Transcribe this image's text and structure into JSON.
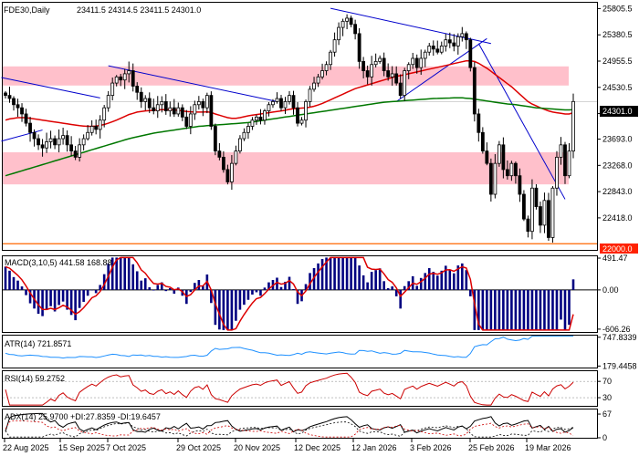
{
  "title": "FDE30,Daily",
  "ohlc_text": "23411.5 24314.5 23411.5 24301.0",
  "last_price": "24301.0",
  "support_label": "22000.0",
  "colors": {
    "candle": "#000000",
    "zone": "#ffc0cb",
    "ma_fast": "#dd0000",
    "ma_slow": "#007700",
    "trendline": "#0000cc",
    "macd_hist": "#000080",
    "macd_signal": "#dd0000",
    "atr": "#1e90ff",
    "rsi": "#cc0000",
    "adx": "#000000",
    "support_line": "#ff6600"
  },
  "chart_data": [
    {
      "type": "candlestick",
      "title": "FDE30,Daily",
      "ylim": [
        21900,
        25900
      ],
      "y_ticks": [
        "25805.5",
        "25380.5",
        "24955.5",
        "24530.5",
        "24105.5",
        "23693.0",
        "23268.0",
        "22843.0",
        "22418.0"
      ],
      "x_ticks": [
        "22 Aug 2025",
        "15 Sep 2025",
        "7 Oct 2025",
        "29 Oct 2025",
        "20 Nov 2025",
        "12 Dec 2025",
        "12 Jan 2026",
        "3 Feb 2026",
        "25 Feb 2026",
        "19 Mar 2026"
      ],
      "zones": [
        [
          24560,
          24870
        ],
        [
          22960,
          23480
        ]
      ],
      "series": [
        {
          "values": [
            24400,
            24350,
            24250,
            24200,
            24100,
            23950,
            23800,
            23700,
            23600,
            23550,
            23650,
            23700,
            23600,
            23700,
            23750,
            23600,
            23500,
            23400,
            23600,
            23700,
            23800,
            23900,
            23850,
            24000,
            24200,
            24400,
            24600,
            24700,
            24650,
            24750,
            24800,
            24550,
            24450,
            24300,
            24350,
            24200,
            24150,
            24250,
            24300,
            24150,
            24200,
            24100,
            24200,
            24050,
            23900,
            24100,
            24250,
            24300,
            24200,
            24400,
            23900,
            23500,
            23400,
            23200,
            23000,
            23300,
            23500,
            23700,
            23800,
            23900,
            24000,
            24050,
            24000,
            24150,
            24250,
            24300,
            24350,
            24200,
            24300,
            24400,
            24200,
            23950,
            24000,
            24300,
            24500,
            24600,
            24700,
            24800,
            24900,
            25100,
            25300,
            25500,
            25600,
            25650,
            25550,
            25400,
            24950,
            24800,
            24700,
            24900,
            24950,
            25000,
            24800,
            24700,
            24750,
            24600,
            24400,
            24800,
            24900,
            25000,
            24850,
            25000,
            25100,
            25200,
            25150,
            25100,
            25200,
            25300,
            25250,
            25200,
            25350,
            25400,
            25300,
            24850,
            24100,
            23800,
            23500,
            23300,
            22800,
            23300,
            23600,
            23200,
            23100,
            23300,
            23100,
            22800,
            22400,
            22200,
            22900,
            22600,
            22300,
            22700,
            22100,
            22900,
            23400,
            23600,
            23100,
            23500,
            24301
          ]
        },
        {
          "values": [
            24000,
            24020,
            24030,
            24040,
            24040,
            24040,
            24030,
            24020,
            24010,
            24000,
            23990,
            23980,
            23970,
            23960,
            23950,
            23940,
            23930,
            23920,
            23910,
            23905,
            23900,
            23900,
            23905,
            23915,
            23930,
            23950,
            23975,
            24000,
            24030,
            24060,
            24090,
            24110,
            24130,
            24140,
            24150,
            24155,
            24160,
            24165,
            24170,
            24170,
            24170,
            24165,
            24160,
            24150,
            24140,
            24135,
            24130,
            24130,
            24130,
            24135,
            24125,
            24100,
            24080,
            24060,
            24040,
            24030,
            24030,
            24040,
            24055,
            24070,
            24080,
            24090,
            24100,
            24110,
            24120,
            24130,
            24140,
            24150,
            24160,
            24175,
            24185,
            24190,
            24195,
            24200,
            24210,
            24225,
            24245,
            24270,
            24300,
            24330,
            24360,
            24390,
            24420,
            24450,
            24480,
            24510,
            24530,
            24550,
            24570,
            24590,
            24610,
            24630,
            24650,
            24670,
            24690,
            24710,
            24720,
            24735,
            24750,
            24765,
            24780,
            24795,
            24810,
            24825,
            24840,
            24855,
            24870,
            24885,
            24900,
            24915,
            24930,
            24945,
            24960,
            24960,
            24950,
            24920,
            24880,
            24840,
            24790,
            24740,
            24690,
            24640,
            24590,
            24540,
            24480,
            24420,
            24360,
            24300,
            24260,
            24230,
            24200,
            24175,
            24150,
            24130,
            24120,
            24110,
            24100,
            24100,
            24120
          ]
        },
        {
          "values": [
            23100,
            23120,
            23140,
            23160,
            23180,
            23200,
            23220,
            23240,
            23260,
            23280,
            23300,
            23320,
            23340,
            23360,
            23380,
            23400,
            23420,
            23440,
            23460,
            23480,
            23500,
            23520,
            23540,
            23560,
            23580,
            23600,
            23620,
            23640,
            23660,
            23680,
            23700,
            23715,
            23730,
            23745,
            23760,
            23775,
            23790,
            23800,
            23810,
            23820,
            23830,
            23840,
            23850,
            23860,
            23870,
            23880,
            23890,
            23900,
            23905,
            23910,
            23915,
            23920,
            23925,
            23930,
            23935,
            23940,
            23945,
            23950,
            23955,
            23960,
            23970,
            23980,
            23990,
            24000,
            24010,
            24020,
            24030,
            24040,
            24050,
            24060,
            24070,
            24080,
            24090,
            24100,
            24110,
            24120,
            24130,
            24140,
            24150,
            24160,
            24170,
            24180,
            24190,
            24200,
            24210,
            24220,
            24230,
            24240,
            24250,
            24260,
            24270,
            24280,
            24290,
            24295,
            24300,
            24305,
            24310,
            24315,
            24320,
            24325,
            24330,
            24335,
            24340,
            24345,
            24350,
            24352,
            24354,
            24356,
            24358,
            24360,
            24360,
            24360,
            24355,
            24350,
            24340,
            24330,
            24320,
            24310,
            24300,
            24290,
            24280,
            24270,
            24262,
            24255,
            24250,
            24240,
            24230,
            24220,
            24210,
            24200,
            24195,
            24190,
            24185,
            24180,
            24175,
            24170,
            24165,
            24165,
            24170
          ]
        }
      ]
    },
    {
      "type": "bar",
      "title": "MACD(3,10,5) 441.58 168.88",
      "y_ticks": [
        "491.47",
        "0.00",
        "-606.26"
      ],
      "ylim": [
        -650,
        520
      ]
    },
    {
      "type": "line",
      "title": "ATR(14) 721.8571",
      "y_ticks": [
        "747.8339",
        "179.4458"
      ],
      "ylim": [
        150,
        780
      ]
    },
    {
      "type": "line",
      "title": "RSI(14) 59.2752",
      "y_ticks": [
        "70",
        "30"
      ],
      "ylim": [
        10,
        95
      ]
    },
    {
      "type": "line",
      "title": "ADX(14) 25.9700 +DI:27.8359 -DI:19.6457",
      "y_ticks": [
        "67",
        "0"
      ],
      "ylim": [
        0,
        80
      ]
    }
  ]
}
